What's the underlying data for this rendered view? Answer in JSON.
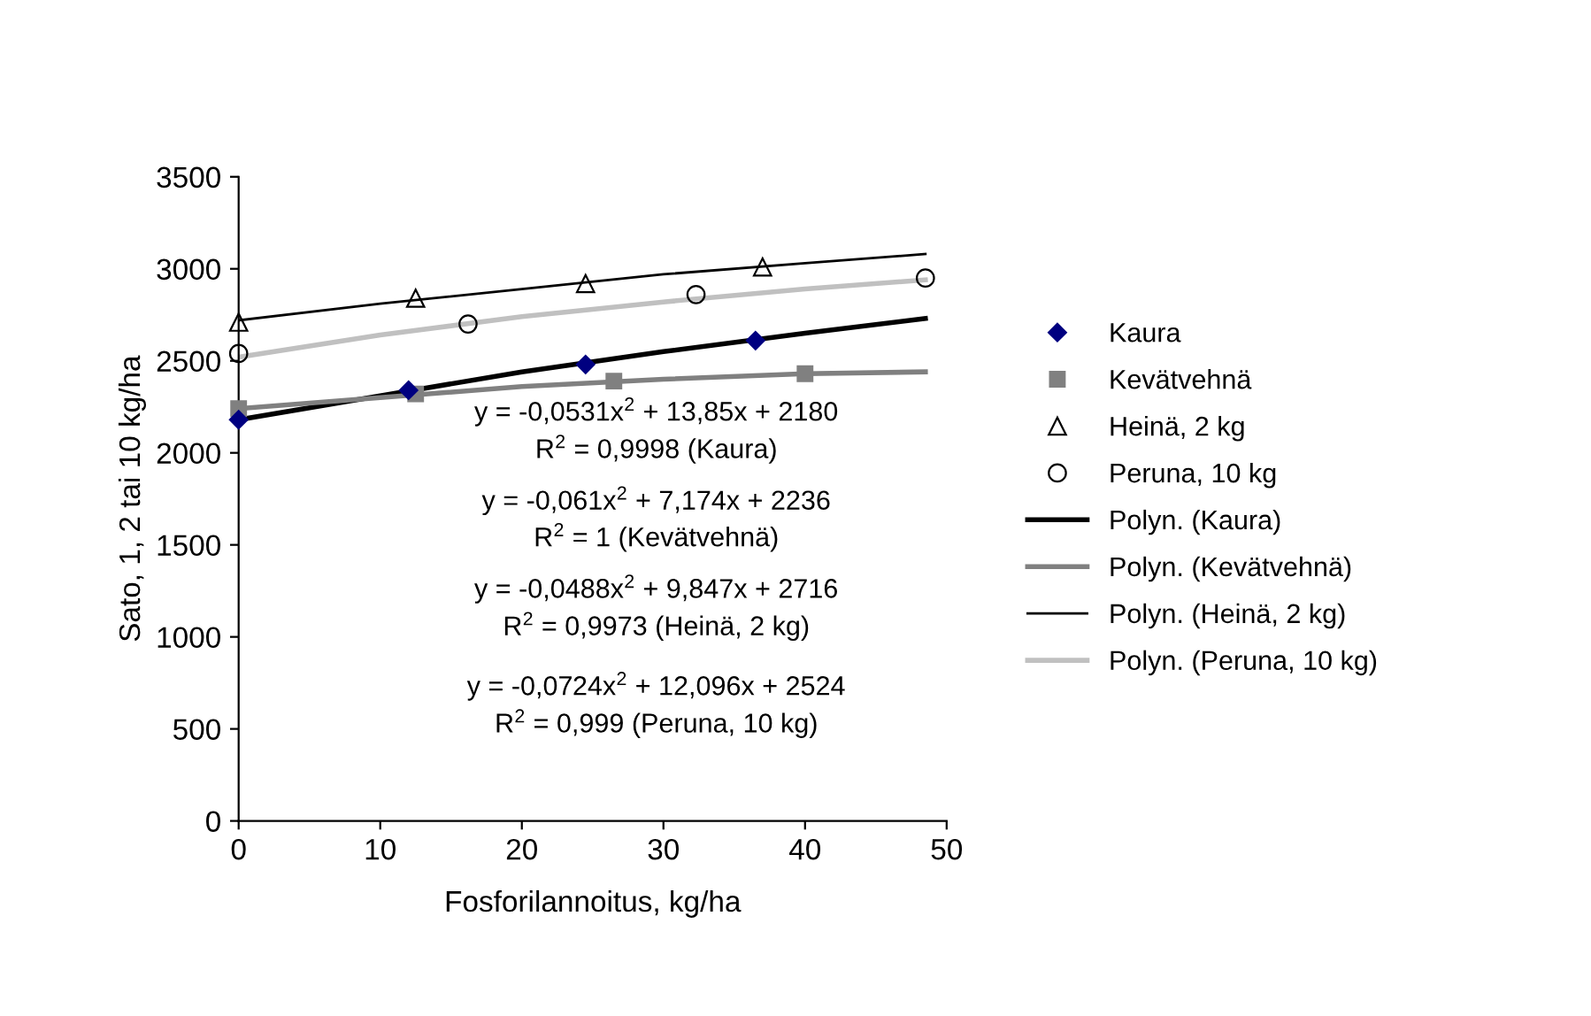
{
  "chart_data": {
    "type": "scatter",
    "xlabel": "Fosforilannoitus, kg/ha",
    "ylabel": "Sato, 1, 2 tai 10 kg/ha",
    "xlim": [
      0,
      50
    ],
    "xticks": [
      0,
      10,
      20,
      30,
      40,
      50
    ],
    "ylim": [
      0,
      3500
    ],
    "yticks": [
      0,
      500,
      1000,
      1500,
      2000,
      2500,
      3000,
      3500
    ],
    "grid": false,
    "legend": "right",
    "series": [
      {
        "name": "Kaura",
        "marker": "diamond",
        "color": "#000080",
        "x": [
          0,
          12,
          24.5,
          36.5
        ],
        "values": [
          2180,
          2340,
          2480,
          2610
        ]
      },
      {
        "name": "Kevätvehnä",
        "marker": "square",
        "color": "#808080",
        "x": [
          0,
          12.5,
          26.5,
          40
        ],
        "values": [
          2240,
          2320,
          2390,
          2430
        ]
      },
      {
        "name": "Heinä, 2 kg",
        "marker": "triangle",
        "color": "#000000",
        "x": [
          0,
          12.5,
          24.5,
          37
        ],
        "values": [
          2710,
          2840,
          2920,
          3010
        ]
      },
      {
        "name": "Peruna, 10 kg",
        "marker": "circle",
        "color": "#000000",
        "x": [
          0,
          16.2,
          32.3,
          48.5
        ],
        "values": [
          2540,
          2700,
          2860,
          2950
        ]
      },
      {
        "name": "Polyn. (Kaura)",
        "type": "line",
        "marker": "none",
        "color": "#000000",
        "x": [
          0,
          10,
          20,
          30,
          40,
          48.5
        ],
        "values": [
          2180,
          2310,
          2440,
          2550,
          2650,
          2730
        ]
      },
      {
        "name": "Polyn. (Kevätvehnä)",
        "type": "line",
        "marker": "none",
        "color": "#808080",
        "x": [
          0,
          10,
          20,
          30,
          40,
          48.5
        ],
        "values": [
          2240,
          2300,
          2360,
          2400,
          2430,
          2440
        ]
      },
      {
        "name": "Polyn. (Heinä, 2 kg)",
        "type": "line",
        "marker": "none",
        "color": "#000000",
        "x": [
          0,
          10,
          20,
          30,
          40,
          48.5
        ],
        "values": [
          2720,
          2810,
          2890,
          2970,
          3030,
          3080
        ]
      },
      {
        "name": "Polyn. (Peruna, 10 kg)",
        "type": "line",
        "marker": "none",
        "color": "#c0c0c0",
        "x": [
          0,
          10,
          20,
          30,
          40,
          48.5
        ],
        "values": [
          2520,
          2640,
          2740,
          2820,
          2890,
          2940
        ]
      }
    ],
    "annotations": [
      "y = -0,0531x$^{2}$ + 13,85x + 2180",
      "R$^{2}$ = 0,9998 (Kaura)",
      "y = -0,061x$^{2}$ + 7,174x + 2236",
      "R$^{2}$ = 1 (Kevätvehnä)",
      "y = -0,0488x$^{2}$ + 9,847x + 2716",
      "R$^{2}$ = 0,9973 (Heinä, 2 kg)",
      "y = -0,0724x$^{2}$ + 12,096x + 2524",
      "R$^{2}$ = 0,999 (Peruna, 10 kg)"
    ]
  }
}
